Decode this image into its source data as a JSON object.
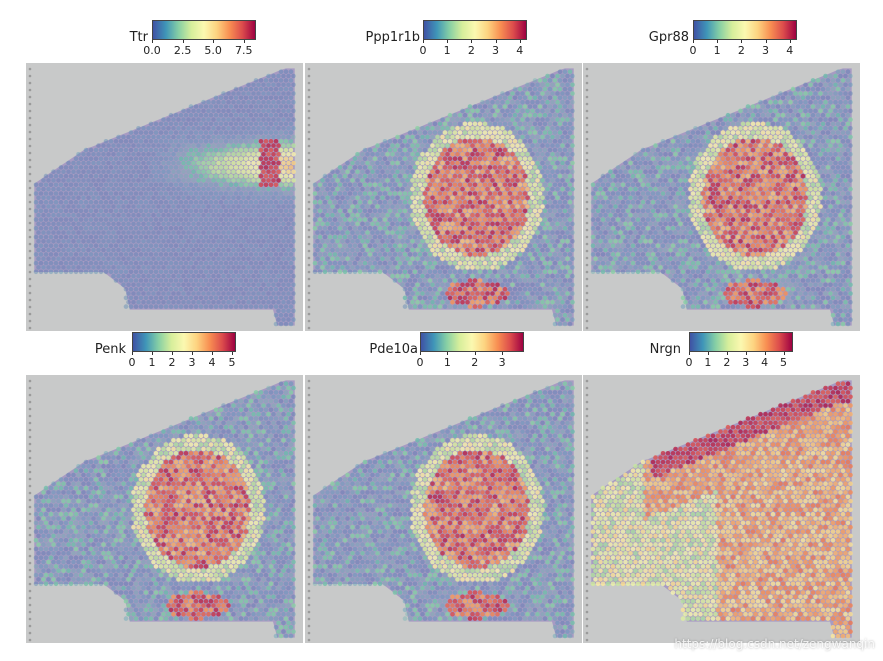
{
  "panels": [
    {
      "gene": "Ttr",
      "ticks": [
        "0.0",
        "2.5",
        "5.0",
        "7.5"
      ],
      "tick_values": [
        0,
        2.5,
        5,
        7.5
      ],
      "max": 8.5,
      "pattern": "ttr"
    },
    {
      "gene": "Ppp1r1b",
      "ticks": [
        "0",
        "1",
        "2",
        "3",
        "4"
      ],
      "tick_values": [
        0,
        1,
        2,
        3,
        4
      ],
      "max": 4.3,
      "pattern": "striatum"
    },
    {
      "gene": "Gpr88",
      "ticks": [
        "0",
        "1",
        "2",
        "3",
        "4"
      ],
      "tick_values": [
        0,
        1,
        2,
        3,
        4
      ],
      "max": 4.3,
      "pattern": "striatum"
    },
    {
      "gene": "Penk",
      "ticks": [
        "0",
        "1",
        "2",
        "3",
        "4",
        "5"
      ],
      "tick_values": [
        0,
        1,
        2,
        3,
        4,
        5
      ],
      "max": 5.2,
      "pattern": "striatum"
    },
    {
      "gene": "Pde10a",
      "ticks": [
        "0",
        "1",
        "2",
        "3"
      ],
      "tick_values": [
        0,
        1,
        2,
        3
      ],
      "max": 3.8,
      "pattern": "striatum"
    },
    {
      "gene": "Nrgn",
      "ticks": [
        "0",
        "1",
        "2",
        "3",
        "4",
        "5"
      ],
      "tick_values": [
        0,
        1,
        2,
        3,
        4,
        5
      ],
      "max": 5.5,
      "pattern": "cortex"
    }
  ],
  "colormap": [
    "#3f52a4",
    "#3f95b8",
    "#86cfa5",
    "#d6ee9b",
    "#fbf8b0",
    "#fdd380",
    "#f88f52",
    "#dc4c4c",
    "#9e0142"
  ],
  "watermark": "https://blog.csdn.net/zengwanqin"
}
